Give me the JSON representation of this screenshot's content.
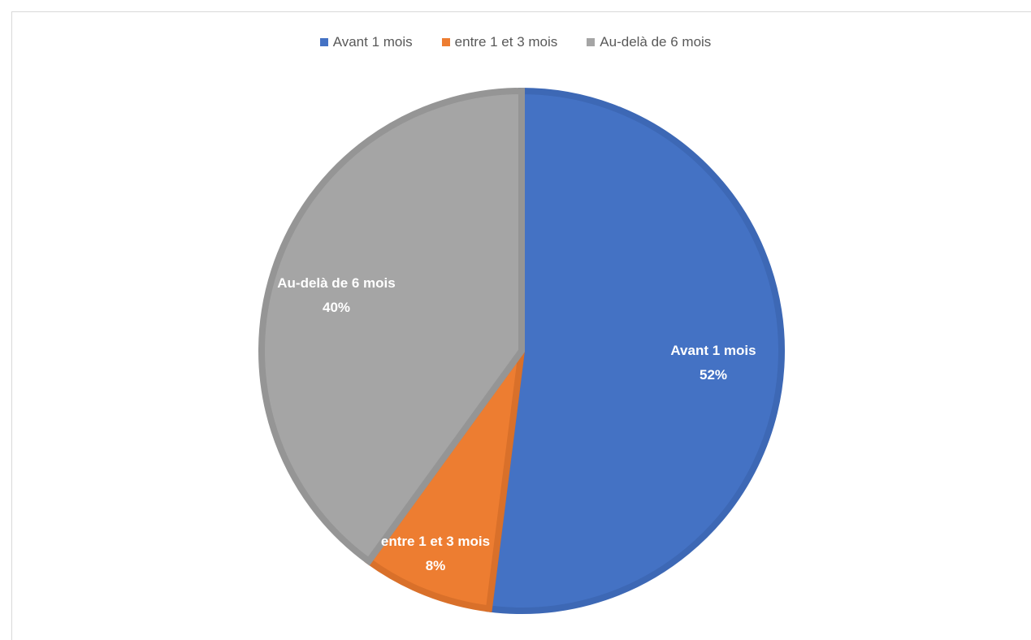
{
  "chart_data": {
    "type": "pie",
    "categories": [
      "Avant 1 mois",
      "entre 1 et 3 mois",
      "Au-delà de 6 mois"
    ],
    "values": [
      52,
      8,
      40
    ],
    "value_labels": [
      "52%",
      "8%",
      "40%"
    ],
    "colors": [
      "#4472c4",
      "#ed7d31",
      "#a5a5a5"
    ],
    "border_colors": [
      "#3d68b5",
      "#d9702a",
      "#959595"
    ],
    "legend_position": "top",
    "start_angle_deg": 0,
    "direction": "clockwise"
  }
}
